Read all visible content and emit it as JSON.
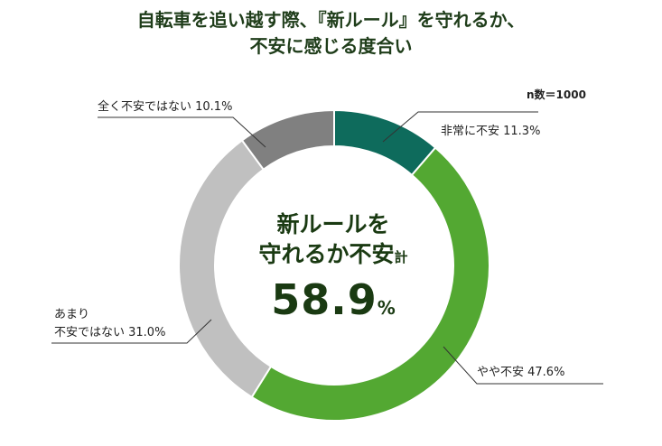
{
  "title": {
    "line1": "自転車を追い越す際、『新ルール』を守れるか、",
    "line2": "不安に感じる度合い"
  },
  "sample_size": "n数＝1000",
  "center": {
    "line1": "新ルールを",
    "line2": "守れるか不安",
    "line2_suffix": "計",
    "value": "58.9",
    "unit": "%"
  },
  "labels": {
    "very_anxious": "非常に不安 11.3%",
    "somewhat_anxious": "やや不安 47.6%",
    "not_very_anxious_line1": "あまり",
    "not_very_anxious_line2": "不安ではない 31.0%",
    "not_anxious": "全く不安ではない 10.1%"
  },
  "chart_data": {
    "type": "pie",
    "categories": [
      "非常に不安",
      "やや不安",
      "あまり不安ではない",
      "全く不安ではない"
    ],
    "values": [
      11.3,
      47.6,
      31.0,
      10.1
    ],
    "colors": [
      "#0e6b5c",
      "#53a832",
      "#c0c0c0",
      "#808080"
    ]
  }
}
